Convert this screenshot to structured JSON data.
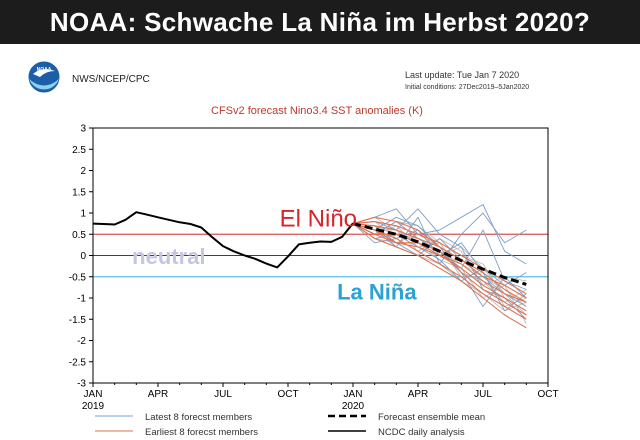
{
  "headline": "NOAA: Schwache La Niña im Herbst 2020?",
  "logo": {
    "text": "NOAA",
    "colors": {
      "outer": "#1b5fa8",
      "inner": "#8fd0f0",
      "bird": "#ffffff"
    }
  },
  "agency": "NWS/NCEP/CPC",
  "last_update": "Last update: Tue Jan 7 2020",
  "initial_conditions": "Initial conditions: 27Dec2019–5Jan2020",
  "colors": {
    "title": "#c0392b",
    "el_nino_text": "#d6262b",
    "la_nina_text": "#2aa2d6",
    "neutral_text": "#c5c5e4",
    "el_nino_line": "#d9534f",
    "la_nina_line": "#5bc0de",
    "latest_members": "#7f9fc9",
    "earliest_members": "#e0714e",
    "grey_members": "#bcbcbc",
    "analysis": "#000000",
    "mean": "#000000"
  },
  "chart_data": {
    "type": "line",
    "title": "CFSv2 forecast Nino3.4 SST anomalies (K)",
    "ylim": [
      -3,
      3
    ],
    "yticks": [
      "3",
      "2.5",
      "2",
      "1.5",
      "1",
      "0.5",
      "0",
      "-0.5",
      "-1",
      "-1.5",
      "-2",
      "-2.5",
      "-3"
    ],
    "xlim": [
      0,
      21
    ],
    "xticks": [
      {
        "month": "JAN",
        "year": "2019",
        "x": 0
      },
      {
        "month": "APR",
        "year": "",
        "x": 3
      },
      {
        "month": "JUL",
        "year": "",
        "x": 6
      },
      {
        "month": "OCT",
        "year": "",
        "x": 9
      },
      {
        "month": "JAN",
        "year": "2020",
        "x": 12
      },
      {
        "month": "APR",
        "year": "",
        "x": 15
      },
      {
        "month": "JUL",
        "year": "",
        "x": 18
      },
      {
        "month": "OCT",
        "year": "",
        "x": 21
      }
    ],
    "grid": false,
    "thresholds": [
      {
        "value": 0.5,
        "label": "El Niño"
      },
      {
        "value": -0.5,
        "label": "La Niña"
      }
    ],
    "region_labels": [
      "El Niño",
      "neutral",
      "La Niña"
    ],
    "analysis": {
      "name": "NCDC daily analysis",
      "x": [
        0,
        0.5,
        1,
        1.5,
        2,
        2.5,
        3,
        3.5,
        4,
        4.5,
        5,
        5.5,
        6,
        6.5,
        7,
        7.5,
        8,
        8.5,
        9,
        9.5,
        10,
        10.5,
        11,
        11.5,
        12
      ],
      "y": [
        0.75,
        0.74,
        0.73,
        0.84,
        1.02,
        0.96,
        0.9,
        0.84,
        0.78,
        0.74,
        0.66,
        0.43,
        0.22,
        0.1,
        0.0,
        -0.08,
        -0.19,
        -0.28,
        -0.02,
        0.26,
        0.3,
        0.33,
        0.32,
        0.44,
        0.76
      ]
    },
    "ensemble_mean": {
      "name": "Forecast ensemble mean",
      "x": [
        12,
        13,
        14,
        15,
        16,
        17,
        18,
        19,
        20
      ],
      "y": [
        0.75,
        0.62,
        0.5,
        0.32,
        0.1,
        -0.12,
        -0.32,
        -0.52,
        -0.68
      ]
    },
    "latest_members": {
      "name": "Latest 8 forecst members",
      "x": [
        12,
        13,
        14,
        15,
        16,
        17,
        18,
        19,
        20
      ],
      "series": [
        [
          0.75,
          0.9,
          1.1,
          0.5,
          0.6,
          0.9,
          1.2,
          0.1,
          -0.2
        ],
        [
          0.75,
          0.6,
          0.2,
          0.9,
          -0.2,
          0.5,
          1.0,
          0.3,
          0.6
        ],
        [
          0.75,
          0.5,
          0.8,
          0.4,
          0.1,
          -0.3,
          0.6,
          -0.6,
          -0.8
        ],
        [
          0.75,
          0.7,
          0.3,
          0.0,
          0.4,
          -0.1,
          -0.5,
          -0.9,
          -1.2
        ],
        [
          0.75,
          0.8,
          0.6,
          1.1,
          0.5,
          0.2,
          -0.8,
          -1.0,
          -1.5
        ],
        [
          0.75,
          0.4,
          0.5,
          0.2,
          -0.1,
          -0.6,
          -0.3,
          -0.7,
          -0.4
        ],
        [
          0.75,
          0.6,
          0.9,
          0.7,
          0.2,
          -0.4,
          -1.2,
          -0.5,
          -1.0
        ],
        [
          0.75,
          0.3,
          0.4,
          0.6,
          0.0,
          0.3,
          -0.4,
          -1.3,
          -0.9
        ]
      ]
    },
    "earliest_members": {
      "name": "Earliest 8 forecst members",
      "x": [
        12,
        13,
        14,
        15,
        16,
        17,
        18,
        19,
        20
      ],
      "series": [
        [
          0.75,
          0.5,
          0.3,
          0.2,
          0.0,
          -0.3,
          -0.7,
          -1.0,
          -1.3
        ],
        [
          0.75,
          0.6,
          0.4,
          0.1,
          -0.2,
          -0.5,
          -0.9,
          -1.2,
          -1.5
        ],
        [
          0.75,
          0.7,
          0.6,
          0.4,
          0.2,
          -0.1,
          -0.4,
          -0.8,
          -1.1
        ],
        [
          0.75,
          0.4,
          0.2,
          0.0,
          -0.3,
          -0.6,
          -1.0,
          -1.4,
          -1.7
        ],
        [
          0.75,
          0.8,
          0.7,
          0.5,
          0.3,
          0.0,
          -0.3,
          -0.6,
          -0.9
        ],
        [
          0.75,
          0.5,
          0.5,
          0.3,
          0.0,
          -0.2,
          -0.6,
          -0.9,
          -1.1
        ],
        [
          0.75,
          0.6,
          0.3,
          0.3,
          0.1,
          -0.4,
          -0.8,
          -1.1,
          -1.4
        ],
        [
          0.75,
          0.9,
          0.8,
          0.6,
          0.2,
          -0.1,
          -0.5,
          -0.7,
          -1.0
        ]
      ]
    },
    "other_members": {
      "x": [
        12,
        13,
        14,
        15,
        16,
        17,
        18,
        19,
        20
      ],
      "series": [
        [
          0.75,
          0.7,
          0.5,
          0.4,
          0.1,
          -0.2,
          -0.5,
          -0.8,
          -1.2
        ],
        [
          0.75,
          0.5,
          0.7,
          0.2,
          0.3,
          -0.4,
          -0.6,
          -1.1,
          -0.8
        ],
        [
          0.75,
          0.8,
          0.4,
          0.6,
          0.0,
          0.2,
          -0.3,
          -0.9,
          -1.4
        ],
        [
          0.75,
          0.6,
          0.6,
          0.3,
          -0.1,
          -0.3,
          -1.0,
          -0.7,
          -1.6
        ],
        [
          0.75,
          0.4,
          0.3,
          0.5,
          0.2,
          -0.5,
          -0.4,
          -1.2,
          -1.0
        ],
        [
          0.75,
          0.9,
          0.6,
          0.1,
          0.4,
          0.1,
          -0.7,
          -0.5,
          -0.6
        ],
        [
          0.75,
          0.5,
          0.8,
          0.7,
          0.3,
          0.0,
          -0.2,
          -1.0,
          -1.3
        ],
        [
          0.75,
          0.7,
          0.2,
          0.0,
          -0.2,
          -0.6,
          -0.9,
          -1.3,
          -1.1
        ]
      ]
    },
    "legend": {
      "placement": "bottom",
      "items": [
        {
          "label": "Latest 8 forecst members",
          "style": "latest"
        },
        {
          "label": "Forecast ensemble mean",
          "style": "mean"
        },
        {
          "label": "Earliest 8 forecst members",
          "style": "earliest"
        },
        {
          "label": "NCDC daily analysis",
          "style": "analysis"
        }
      ]
    }
  }
}
